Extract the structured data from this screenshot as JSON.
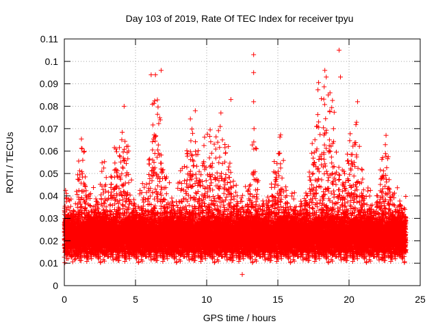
{
  "chart_data": {
    "type": "scatter",
    "title": "Day 103 of 2019, Rate Of TEC Index for receiver tpyu",
    "xlabel": "GPS time / hours",
    "ylabel": "ROTI / TECUs",
    "xlim": [
      0,
      25
    ],
    "ylim": [
      0,
      0.11
    ],
    "x_ticks": [
      "0",
      "5",
      "10",
      "15",
      "20",
      "25"
    ],
    "y_ticks": [
      "0",
      "0.01",
      "0.02",
      "0.03",
      "0.04",
      "0.05",
      "0.06",
      "0.07",
      "0.08",
      "0.09",
      "0.1",
      "0.11"
    ],
    "grid": true,
    "marker": "+",
    "series_color": "#ff0000",
    "series": [
      {
        "name": "ROTI",
        "x_range": [
          0,
          24
        ],
        "sample_interval_hours": 0.00417,
        "baseline_band": [
          0.01,
          0.035
        ],
        "typical_value": 0.022,
        "notable_points": [
          {
            "x": 4.2,
            "y": 0.08
          },
          {
            "x": 6.1,
            "y": 0.094
          },
          {
            "x": 6.4,
            "y": 0.094
          },
          {
            "x": 6.8,
            "y": 0.096
          },
          {
            "x": 9.2,
            "y": 0.078
          },
          {
            "x": 11.0,
            "y": 0.077
          },
          {
            "x": 11.7,
            "y": 0.083
          },
          {
            "x": 12.5,
            "y": 0.005
          },
          {
            "x": 13.3,
            "y": 0.103
          },
          {
            "x": 13.3,
            "y": 0.095
          },
          {
            "x": 13.3,
            "y": 0.082
          },
          {
            "x": 18.3,
            "y": 0.096
          },
          {
            "x": 18.4,
            "y": 0.093
          },
          {
            "x": 19.3,
            "y": 0.105
          },
          {
            "x": 19.4,
            "y": 0.093
          },
          {
            "x": 20.6,
            "y": 0.082
          },
          {
            "x": 22.6,
            "y": 0.067
          }
        ]
      }
    ]
  }
}
